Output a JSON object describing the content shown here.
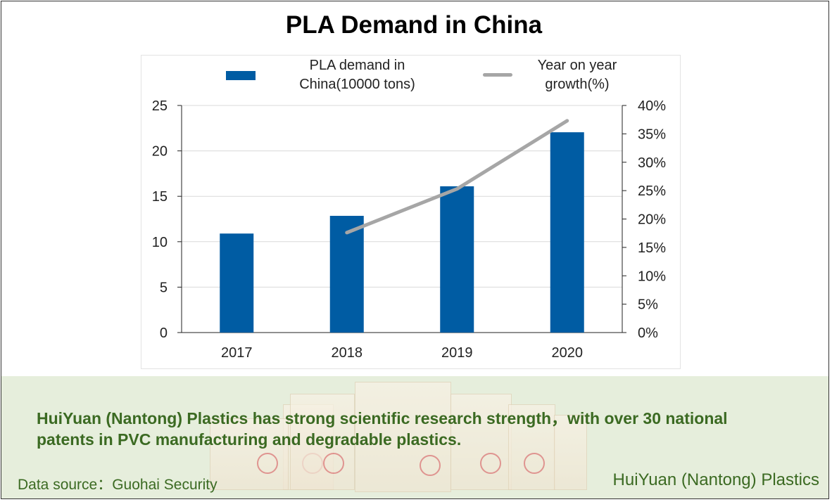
{
  "title": "PLA Demand in China",
  "chart_data": {
    "type": "bar",
    "title": "PLA Demand in China",
    "categories": [
      "2017",
      "2018",
      "2019",
      "2020"
    ],
    "series": [
      {
        "name": "PLA demand in China(10000 tons)",
        "type": "bar",
        "axis": "left",
        "color": "#005ca3",
        "values": [
          10.9,
          12.85,
          16.1,
          22.05
        ]
      },
      {
        "name": "Year on year growth(%)",
        "type": "line",
        "axis": "right",
        "color": "#a6a6a6",
        "values": [
          null,
          17.6,
          25.3,
          37.3
        ]
      }
    ],
    "y_left": {
      "ylim": [
        0,
        25
      ],
      "ticks": [
        "0",
        "5",
        "10",
        "15",
        "20",
        "25"
      ]
    },
    "y_right": {
      "ylim": [
        0,
        40
      ],
      "ticks": [
        "0%",
        "5%",
        "10%",
        "15%",
        "20%",
        "25%",
        "30%",
        "35%",
        "40%"
      ]
    },
    "legend": {
      "placement": "top",
      "bar_label_line1": "PLA demand in",
      "bar_label_line2": "China(10000 tons)",
      "line_label_line1": "Year on year",
      "line_label_line2": "growth(%)"
    },
    "grid": true
  },
  "footer": {
    "headline_line1": "HuiYuan (Nantong) Plastics has strong scientific research strength，with over 30 national",
    "headline_line2": "patents in PVC manufacturing and degradable plastics.",
    "source": "Data source：Guohai Security",
    "brand": "HuiYuan (Nantong) Plastics"
  }
}
